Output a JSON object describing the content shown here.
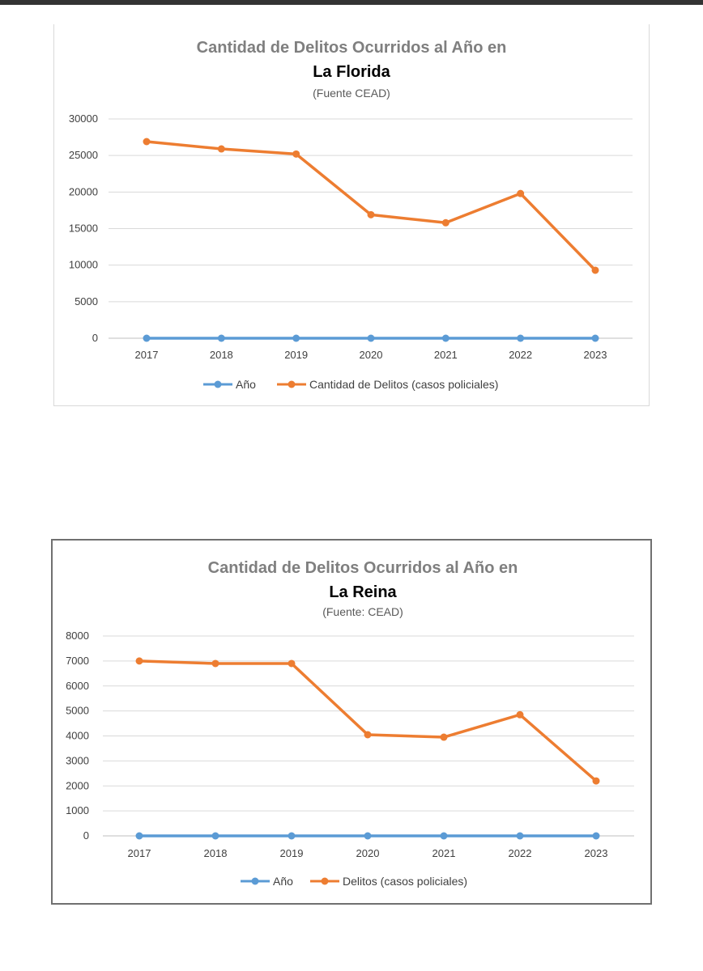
{
  "chart_data": [
    {
      "type": "line",
      "title": "Cantidad de Delitos Ocurridos al Año en",
      "subtitle": "La Florida",
      "source": "(Fuente CEAD)",
      "categories": [
        "2017",
        "2018",
        "2019",
        "2020",
        "2021",
        "2022",
        "2023"
      ],
      "yticks": [
        "30000",
        "25000",
        "20000",
        "15000",
        "10000",
        "5000",
        "0"
      ],
      "ylim": [
        0,
        30000
      ],
      "grid": true,
      "legend_position": "bottom",
      "series": [
        {
          "name": "Año",
          "color": "#5b9bd5",
          "values": [
            0,
            0,
            0,
            0,
            0,
            0,
            0
          ]
        },
        {
          "name": "Cantidad de Delitos (casos policiales)",
          "color": "#ed7d31",
          "values": [
            26900,
            25900,
            25200,
            16900,
            15800,
            19800,
            9300
          ]
        }
      ]
    },
    {
      "type": "line",
      "title": "Cantidad de Delitos Ocurridos al Año en",
      "subtitle": "La Reina",
      "source": "(Fuente: CEAD)",
      "categories": [
        "2017",
        "2018",
        "2019",
        "2020",
        "2021",
        "2022",
        "2023"
      ],
      "yticks": [
        "8000",
        "7000",
        "6000",
        "5000",
        "4000",
        "3000",
        "2000",
        "1000",
        "0"
      ],
      "ylim": [
        0,
        8000
      ],
      "grid": true,
      "legend_position": "bottom",
      "series": [
        {
          "name": "Año",
          "color": "#5b9bd5",
          "values": [
            0,
            0,
            0,
            0,
            0,
            0,
            0
          ]
        },
        {
          "name": "Delitos (casos policiales)",
          "color": "#ed7d31",
          "values": [
            7000,
            6900,
            6900,
            4050,
            3950,
            4850,
            2200
          ]
        }
      ]
    }
  ]
}
